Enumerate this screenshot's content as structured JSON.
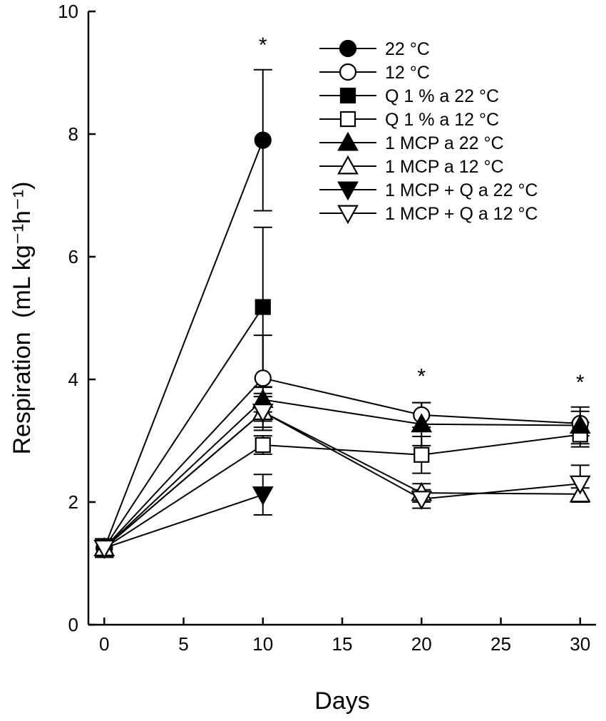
{
  "chart_data": {
    "type": "line",
    "title": "",
    "xlabel": "Days",
    "ylabel": "Respiration",
    "ylabel_unit": "(mL kg⁻¹h⁻¹)",
    "xlim": [
      -1,
      31
    ],
    "ylim": [
      0,
      10
    ],
    "xticks": [
      0,
      5,
      10,
      15,
      20,
      25,
      30
    ],
    "yticks": [
      0,
      2,
      4,
      6,
      8,
      10
    ],
    "grid": false,
    "legend_position": "top-right",
    "significance": [
      {
        "x": 10,
        "y": 9.5,
        "label": "*"
      },
      {
        "x": 20,
        "y": 4.1,
        "label": "*"
      },
      {
        "x": 30,
        "y": 4.0,
        "label": "*"
      }
    ],
    "series": [
      {
        "name": "22 °C",
        "marker": "circle",
        "fill": "filled",
        "x": [
          0,
          10
        ],
        "values": [
          1.25,
          7.9
        ],
        "error": [
          0.15,
          1.15
        ]
      },
      {
        "name": "12 °C",
        "marker": "circle",
        "fill": "open",
        "x": [
          0,
          10,
          20,
          30
        ],
        "values": [
          1.25,
          4.02,
          3.42,
          3.28
        ],
        "error": [
          0.15,
          0.7,
          0.2,
          0.2
        ]
      },
      {
        "name": "Q 1 % a 22 °C",
        "marker": "square",
        "fill": "filled",
        "x": [
          0,
          10
        ],
        "values": [
          1.25,
          5.18
        ],
        "error": [
          0.15,
          1.3
        ]
      },
      {
        "name": "Q 1 % a 12 °C",
        "marker": "square",
        "fill": "open",
        "x": [
          0,
          10,
          20,
          30
        ],
        "values": [
          1.25,
          2.93,
          2.77,
          3.1
        ],
        "error": [
          0.15,
          0.15,
          0.3,
          0.2
        ]
      },
      {
        "name": "1 MCP a 22 °C",
        "marker": "triangle-up",
        "fill": "filled",
        "x": [
          0,
          10,
          20,
          30
        ],
        "values": [
          1.25,
          3.67,
          3.27,
          3.25
        ],
        "error": [
          0.15,
          0.2,
          0.35,
          0.3
        ]
      },
      {
        "name": "1 MCP a 12 °C",
        "marker": "triangle-up",
        "fill": "open",
        "x": [
          0,
          10,
          20,
          30
        ],
        "values": [
          1.25,
          3.47,
          2.15,
          2.13
        ],
        "error": [
          0.15,
          0.3,
          0.15,
          0.1
        ]
      },
      {
        "name": "1 MCP + Q a 22 °C",
        "marker": "triangle-down",
        "fill": "filled",
        "x": [
          0,
          10
        ],
        "values": [
          1.25,
          2.12
        ],
        "error": [
          0.15,
          0.33
        ]
      },
      {
        "name": "1 MCP + Q a 12 °C",
        "marker": "triangle-down",
        "fill": "open",
        "x": [
          0,
          10,
          20,
          30
        ],
        "values": [
          1.25,
          3.47,
          2.05,
          2.3
        ],
        "error": [
          0.15,
          0.25,
          0.15,
          0.3
        ]
      }
    ]
  }
}
